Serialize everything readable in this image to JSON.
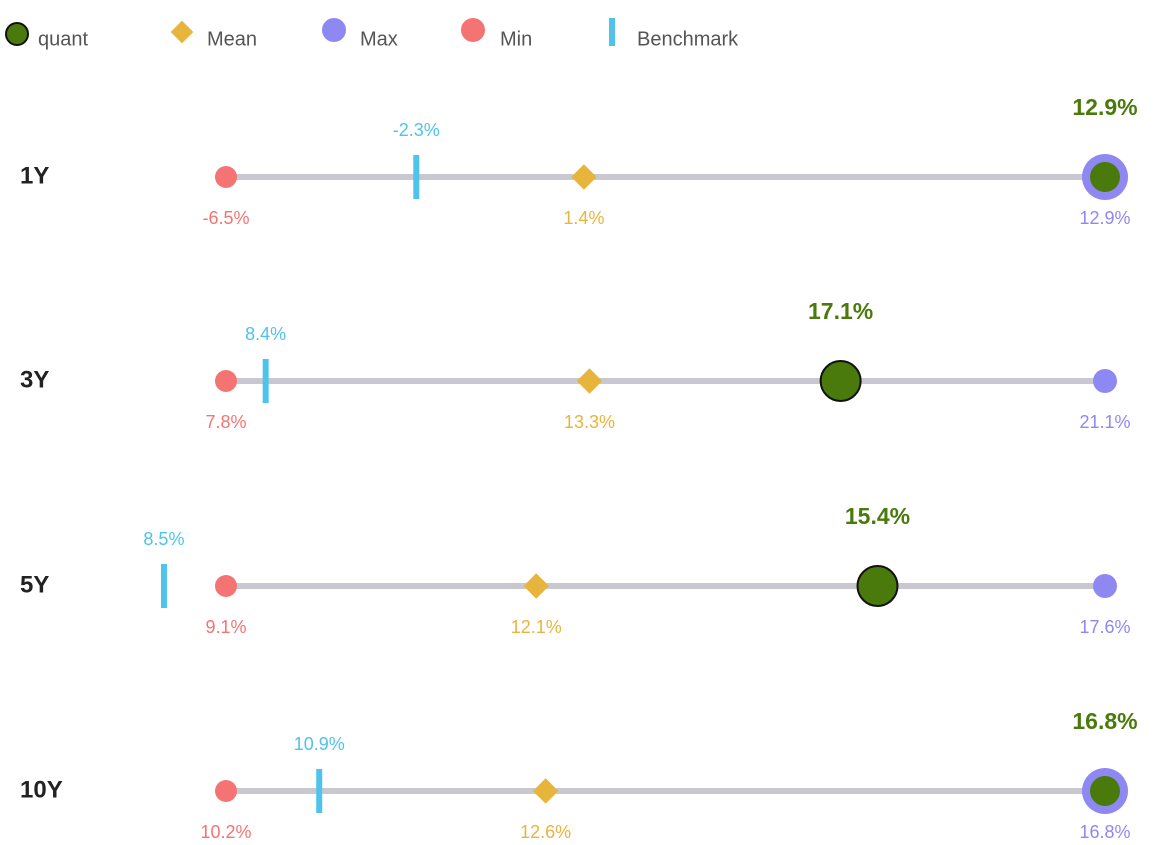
{
  "chart_data": {
    "type": "dumbbell",
    "categories": [
      "1Y",
      "3Y",
      "5Y",
      "10Y"
    ],
    "series": [
      {
        "name": "quant",
        "color": "#4a7a0c",
        "values": [
          12.9,
          17.1,
          15.4,
          16.8
        ],
        "value_labels": [
          "12.9%",
          "17.1%",
          "15.4%",
          "16.8%"
        ]
      },
      {
        "name": "Mean",
        "color": "#e8b53c",
        "values": [
          1.4,
          13.3,
          12.1,
          12.6
        ],
        "value_labels": [
          "1.4%",
          "13.3%",
          "12.1%",
          "12.6%"
        ]
      },
      {
        "name": "Max",
        "color": "#8e88f2",
        "values": [
          12.9,
          21.1,
          17.6,
          16.8
        ],
        "value_labels": [
          "12.9%",
          "21.1%",
          "17.6%",
          "16.8%"
        ]
      },
      {
        "name": "Min",
        "color": "#f47474",
        "values": [
          -6.5,
          7.8,
          9.1,
          10.2
        ],
        "value_labels": [
          "-6.5%",
          "7.8%",
          "9.1%",
          "10.2%"
        ]
      },
      {
        "name": "Benchmark",
        "color": "#4ec3ec",
        "values": [
          -2.3,
          8.4,
          8.5,
          10.9
        ],
        "value_labels": [
          "-2.3%",
          "8.4%",
          "8.5%",
          "10.9%"
        ]
      }
    ]
  }
}
